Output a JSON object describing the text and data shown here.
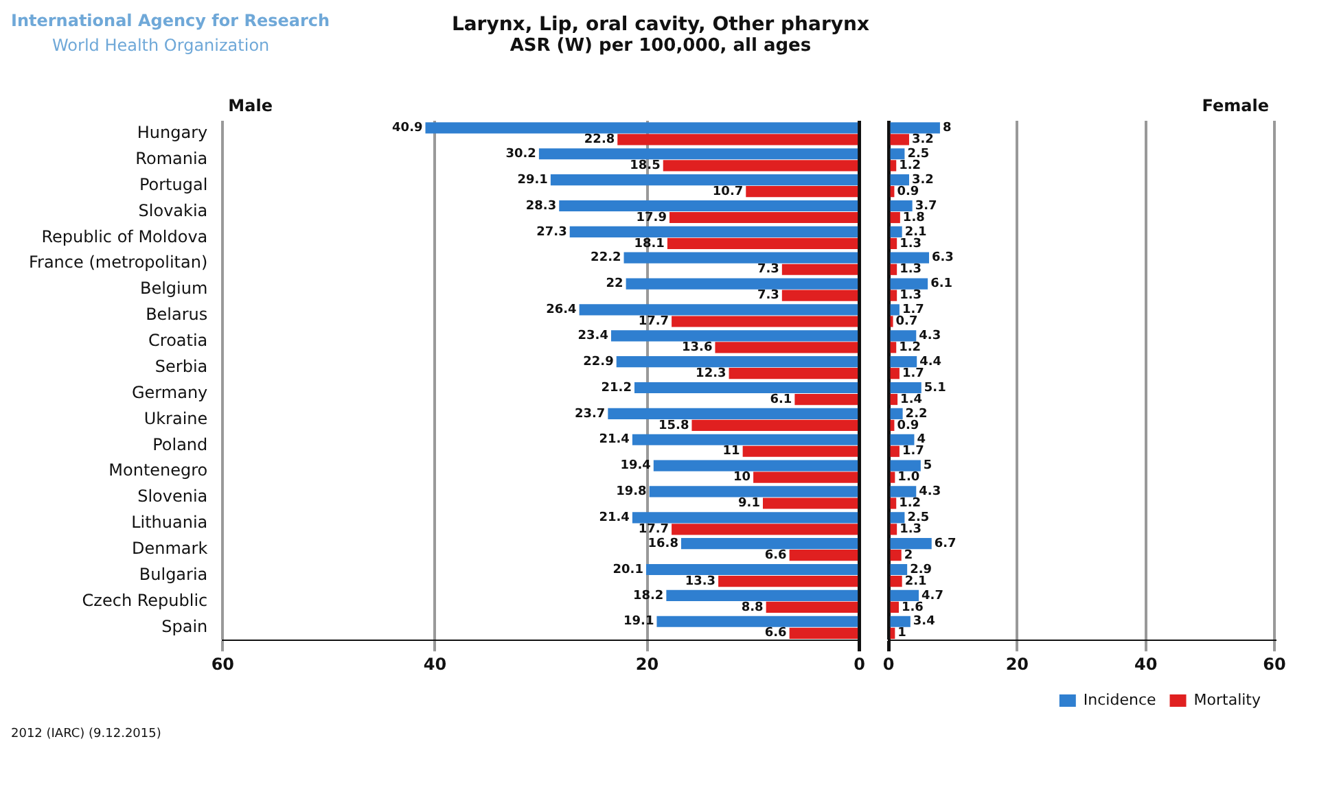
{
  "chart_data": [
    {
      "type": "bar",
      "orientation": "horizontal",
      "title": "Larynx, Lip, oral cavity, Other pharynx",
      "subtitle": "ASR (W) per 100,000, all ages",
      "categories": [
        "Hungary",
        "Romania",
        "Portugal",
        "Slovakia",
        "Republic of Moldova",
        "France (metropolitan)",
        "Belgium",
        "Belarus",
        "Croatia",
        "Serbia",
        "Germany",
        "Ukraine",
        "Poland",
        "Montenegro",
        "Slovenia",
        "Lithuania",
        "Denmark",
        "Bulgaria",
        "Czech Republic",
        "Spain"
      ],
      "series": [
        {
          "color": "#2f7fd0",
          "values": [
            40.9,
            30.2,
            29.1,
            28.3,
            27.3,
            22.2,
            22,
            26.4,
            23.4,
            22.9,
            21.2,
            23.7,
            21.4,
            19.4,
            19.8,
            21.4,
            16.8,
            20.1,
            18.2,
            19.1
          ]
        },
        {
          "color": "#e02020",
          "values": [
            22.8,
            18.5,
            10.7,
            17.9,
            18.1,
            7.3,
            7.3,
            17.7,
            13.6,
            12.3,
            6.1,
            15.8,
            11,
            10,
            9.1,
            17.7,
            6.6,
            13.3,
            8.8,
            6.6
          ]
        }
      ],
      "data_labels": true,
      "xlim": [
        60,
        0
      ],
      "xticks": [
        60,
        40,
        20,
        0
      ],
      "grid": "x",
      "annotations": [
        "International Agency for Research",
        "World Health Organization",
        "Male",
        "2012 (IARC) (9.12.2015)"
      ]
    },
    {
      "type": "bar",
      "orientation": "horizontal",
      "categories": [
        null,
        null,
        null,
        null,
        null,
        null,
        null,
        null,
        null,
        null,
        null,
        null,
        null,
        null,
        null,
        null,
        null,
        null,
        null,
        null
      ],
      "series": [
        {
          "name": "Incidence",
          "color": "#2f7fd0",
          "values": [
            8,
            2.5,
            3.2,
            3.7,
            2.1,
            6.3,
            6.1,
            1.7,
            4.3,
            4.4,
            5.1,
            2.2,
            4,
            5,
            4.3,
            2.5,
            6.7,
            2.9,
            4.7,
            3.4
          ]
        },
        {
          "name": "Mortality",
          "color": "#e02020",
          "values": [
            3.2,
            1.2,
            0.9,
            1.8,
            1.3,
            1.3,
            1.3,
            0.7,
            1.2,
            1.7,
            1.4,
            0.9,
            1.7,
            1.0,
            1.2,
            1.3,
            2,
            2.1,
            1.6,
            1
          ],
          "value_labels": [
            "3.2",
            "1.2",
            "0.9",
            "1.8",
            "1.3",
            "1.3",
            "1.3",
            "0.7",
            "1.2",
            "1.7",
            "1.4",
            "0.9",
            "1.7",
            "1.0",
            "1.2",
            "1.3",
            "2",
            "2.1",
            "1.6",
            "1"
          ]
        }
      ],
      "data_labels": true,
      "xlim": [
        0,
        60
      ],
      "xticks": [
        0,
        20,
        40,
        60
      ],
      "grid": "x",
      "legend": "bottom right",
      "annotations": [
        "Female"
      ]
    }
  ]
}
